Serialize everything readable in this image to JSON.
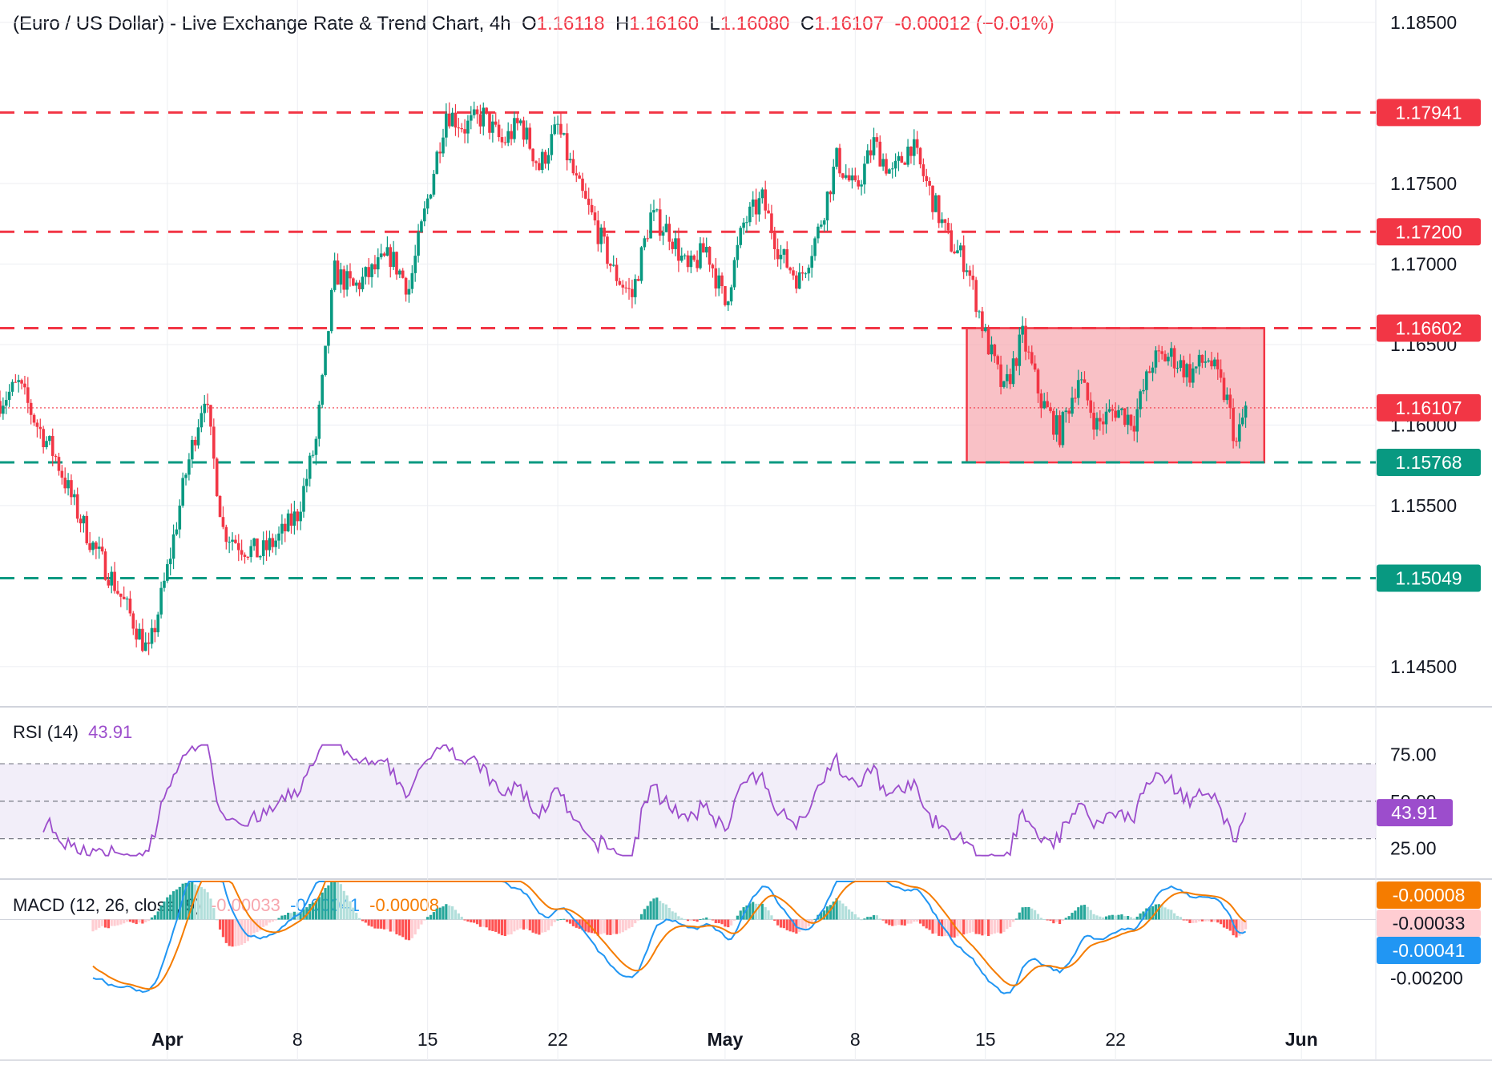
{
  "header": {
    "symbol": "(Euro / US Dollar) - Live Exchange Rate & Trend Chart, 4h",
    "open_label": "O",
    "open": "1.16118",
    "high_label": "H",
    "high": "1.16160",
    "low_label": "L",
    "low": "1.16080",
    "close_label": "C",
    "close": "1.16107",
    "change": "-0.00012 (−0.01%)"
  },
  "rsi_label": {
    "name": "RSI (14)",
    "value": "43.91"
  },
  "macd_label": {
    "name": "MACD (12, 26, close, 9)",
    "hist": "-0.00033",
    "macd": "-0.00041",
    "signal": "-0.00008"
  },
  "colors": {
    "up": "#089981",
    "down": "#f23645",
    "rsi": "#9c4dcc",
    "macd": "#2196f3",
    "signal": "#f57c00",
    "zone_fill": "#f7a7ae",
    "grid": "#eceef2",
    "axis_text": "#131722"
  },
  "chart_data": [
    {
      "type": "candlestick",
      "title": "(Euro / US Dollar) - Live Exchange Rate & Trend Chart, 4h",
      "y_axis": {
        "ticks": [
          "1.18500",
          "1.17500",
          "1.17000",
          "1.16500",
          "1.16000",
          "1.15500",
          "1.14500"
        ],
        "range": [
          1.1435,
          1.1855
        ]
      },
      "x_axis": {
        "ticks": [
          "Apr",
          "8",
          "15",
          "22",
          "May",
          "8",
          "15",
          "22",
          "Jun"
        ],
        "tick_dates": [
          "2025-04-01",
          "2025-04-08",
          "2025-04-15",
          "2025-04-22",
          "2025-05-01",
          "2025-05-08",
          "2025-05-15",
          "2025-05-22",
          "2025-06-01"
        ],
        "range": [
          "2025-03-23",
          "2025-06-05"
        ]
      },
      "last_price": {
        "value": 1.16107,
        "label": "1.16107"
      },
      "levels": [
        {
          "value": 1.17941,
          "label": "1.17941",
          "color": "#f23645",
          "style": "dashed"
        },
        {
          "value": 1.172,
          "label": "1.17200",
          "color": "#f23645",
          "style": "dashed"
        },
        {
          "value": 1.16602,
          "label": "1.16602",
          "color": "#f23645",
          "style": "dashed"
        },
        {
          "value": 1.15768,
          "label": "1.15768",
          "color": "#089981",
          "style": "dashed"
        },
        {
          "value": 1.15049,
          "label": "1.15049",
          "color": "#089981",
          "style": "dashed"
        }
      ],
      "range_box": {
        "from": "2025-05-14",
        "to": "2025-05-30",
        "top": 1.16602,
        "bottom": 1.15768
      },
      "price_path": [
        [
          "2025-03-23",
          1.1615
        ],
        [
          "2025-03-24",
          1.1625
        ],
        [
          "2025-03-25",
          1.16
        ],
        [
          "2025-03-26",
          1.158
        ],
        [
          "2025-03-27",
          1.155
        ],
        [
          "2025-03-28",
          1.1525
        ],
        [
          "2025-03-29",
          1.1505
        ],
        [
          "2025-03-30",
          1.1482
        ],
        [
          "2025-03-31",
          1.1458
        ],
        [
          "2025-04-01",
          1.151
        ],
        [
          "2025-04-02",
          1.157
        ],
        [
          "2025-04-03",
          1.162
        ],
        [
          "2025-04-04",
          1.1535
        ],
        [
          "2025-04-05",
          1.1525
        ],
        [
          "2025-04-06",
          1.152
        ],
        [
          "2025-04-07",
          1.153
        ],
        [
          "2025-04-08",
          1.1545
        ],
        [
          "2025-04-09",
          1.159
        ],
        [
          "2025-04-10",
          1.1695
        ],
        [
          "2025-04-11",
          1.1685
        ],
        [
          "2025-04-12",
          1.1695
        ],
        [
          "2025-04-13",
          1.1705
        ],
        [
          "2025-04-14",
          1.1685
        ],
        [
          "2025-04-15",
          1.174
        ],
        [
          "2025-04-16",
          1.1795
        ],
        [
          "2025-04-17",
          1.1785
        ],
        [
          "2025-04-18",
          1.1792
        ],
        [
          "2025-04-19",
          1.1775
        ],
        [
          "2025-04-20",
          1.1788
        ],
        [
          "2025-04-21",
          1.176
        ],
        [
          "2025-04-22",
          1.1785
        ],
        [
          "2025-04-23",
          1.175
        ],
        [
          "2025-04-24",
          1.1725
        ],
        [
          "2025-04-25",
          1.1695
        ],
        [
          "2025-04-26",
          1.168
        ],
        [
          "2025-04-27",
          1.173
        ],
        [
          "2025-04-28",
          1.172
        ],
        [
          "2025-04-29",
          1.1695
        ],
        [
          "2025-04-30",
          1.171
        ],
        [
          "2025-05-01",
          1.1675
        ],
        [
          "2025-05-02",
          1.1725
        ],
        [
          "2025-05-03",
          1.174
        ],
        [
          "2025-05-04",
          1.1705
        ],
        [
          "2025-05-05",
          1.169
        ],
        [
          "2025-05-06",
          1.172
        ],
        [
          "2025-05-07",
          1.1765
        ],
        [
          "2025-05-08",
          1.1745
        ],
        [
          "2025-05-09",
          1.1775
        ],
        [
          "2025-05-10",
          1.1755
        ],
        [
          "2025-05-11",
          1.1775
        ],
        [
          "2025-05-12",
          1.1745
        ],
        [
          "2025-05-13",
          1.1715
        ],
        [
          "2025-05-14",
          1.17
        ],
        [
          "2025-05-15",
          1.1655
        ],
        [
          "2025-05-16",
          1.162
        ],
        [
          "2025-05-17",
          1.1655
        ],
        [
          "2025-05-18",
          1.1615
        ],
        [
          "2025-05-19",
          1.1595
        ],
        [
          "2025-05-20",
          1.163
        ],
        [
          "2025-05-21",
          1.16
        ],
        [
          "2025-05-22",
          1.161
        ],
        [
          "2025-05-23",
          1.1603
        ],
        [
          "2025-05-24",
          1.164
        ],
        [
          "2025-05-25",
          1.1643
        ],
        [
          "2025-05-26",
          1.1632
        ],
        [
          "2025-05-27",
          1.1642
        ],
        [
          "2025-05-28",
          1.1615
        ],
        [
          "2025-05-28T12:00",
          1.1588
        ],
        [
          "2025-05-29",
          1.16107
        ]
      ]
    },
    {
      "type": "line",
      "title": "RSI (14)",
      "y_axis": {
        "ticks": [
          "75.00",
          "50.00",
          "25.00"
        ],
        "range": [
          20,
          82
        ]
      },
      "band": [
        30,
        70
      ],
      "middle": 50,
      "current": {
        "value": 43.91,
        "label": "43.91"
      }
    },
    {
      "type": "line",
      "title": "MACD (12, 26, close, 9)",
      "y_axis": {
        "ticks": [
          "-0.00200"
        ],
        "range": [
          -0.00335,
          0.0013
        ]
      },
      "series": [
        {
          "name": "MACD",
          "color": "#2196f3",
          "current": -0.00041,
          "label": "-0.00041"
        },
        {
          "name": "Signal",
          "color": "#f57c00",
          "current": -8e-05,
          "label": "-0.00008"
        },
        {
          "name": "Histogram",
          "current": -0.00033,
          "label": "-0.00033"
        }
      ]
    }
  ]
}
